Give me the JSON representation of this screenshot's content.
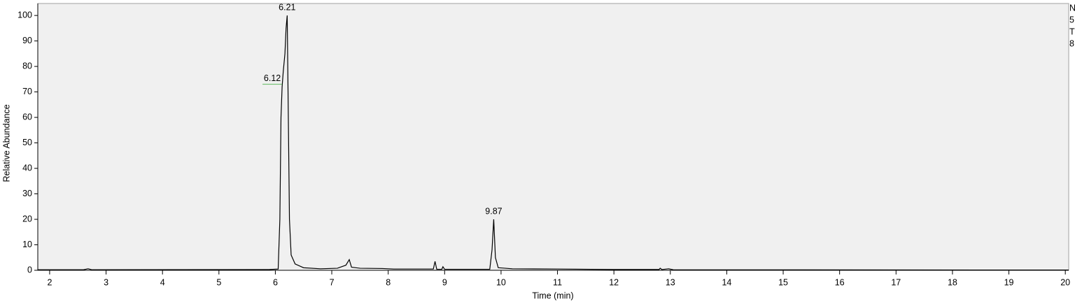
{
  "chart_data": {
    "type": "line",
    "x_label": "Time (min)",
    "y_label": "Relative Abundance",
    "x": [
      1.79,
      2.6,
      2.68,
      2.75,
      5.9,
      6.05,
      6.08,
      6.1,
      6.12,
      6.14,
      6.17,
      6.19,
      6.21,
      6.23,
      6.25,
      6.28,
      6.35,
      6.5,
      6.8,
      7.1,
      7.25,
      7.31,
      7.35,
      7.5,
      7.9,
      8.1,
      8.8,
      8.83,
      8.86,
      8.95,
      8.97,
      9.0,
      9.8,
      9.84,
      9.87,
      9.9,
      9.95,
      10.2,
      11,
      12,
      12.8,
      12.82,
      12.85,
      12.97,
      13.05,
      20.06
    ],
    "series": [
      {
        "color": "#000000",
        "values": [
          0.2,
          0.2,
          0.6,
          0.2,
          0.3,
          0.5,
          20,
          60,
          72,
          78,
          85,
          95,
          100,
          60,
          20,
          6,
          2.5,
          1,
          0.6,
          0.8,
          2,
          4.2,
          1.2,
          0.8,
          0.7,
          0.5,
          0.5,
          3.5,
          0.4,
          0.4,
          1.4,
          0.4,
          0.4,
          8,
          20,
          5,
          1,
          0.6,
          0.5,
          0.3,
          0.3,
          0.8,
          0.3,
          0.6,
          0.2,
          0.1
        ]
      }
    ],
    "annotations": [
      {
        "text": "6.21",
        "x": 6.21,
        "y": 100
      },
      {
        "text": "6.12",
        "x": 6.12,
        "y": 73
      },
      {
        "text": "9.87",
        "x": 9.87,
        "y": 20
      }
    ],
    "side_text": [
      "N",
      "5",
      "T",
      "8"
    ],
    "xlim": [
      1.79,
      20.06
    ],
    "ylim": [
      0,
      104.7
    ],
    "xticks": [
      2,
      3,
      4,
      5,
      6,
      7,
      8,
      9,
      10,
      11,
      12,
      13,
      14,
      15,
      16,
      17,
      18,
      19,
      20
    ],
    "yticks": [
      0,
      10,
      20,
      30,
      40,
      50,
      60,
      70,
      80,
      90,
      100
    ]
  }
}
